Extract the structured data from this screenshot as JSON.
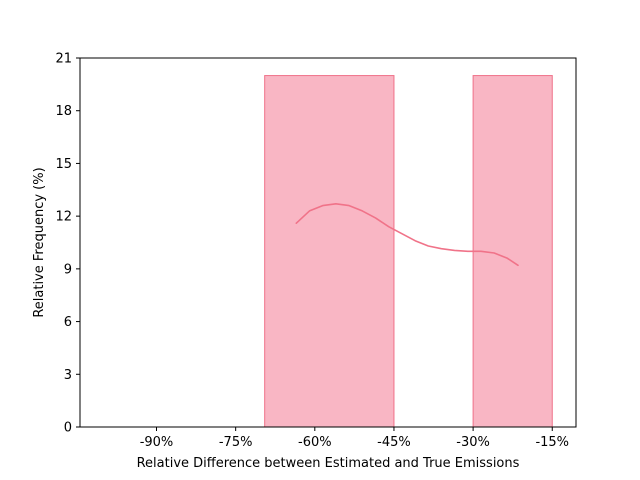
{
  "chart_data": {
    "type": "bar",
    "title": "",
    "xlabel": "Relative Difference between Estimated and True Emissions",
    "ylabel": "Relative Frequency (%)",
    "xlim": [
      -104.5,
      -10.5
    ],
    "ylim": [
      0,
      21
    ],
    "x_ticks": [
      {
        "value": -90,
        "label": "-90%"
      },
      {
        "value": -75,
        "label": "-75%"
      },
      {
        "value": -60,
        "label": "-60%"
      },
      {
        "value": -45,
        "label": "-45%"
      },
      {
        "value": -30,
        "label": "-30%"
      },
      {
        "value": -15,
        "label": "-15%"
      }
    ],
    "y_ticks": [
      {
        "value": 0,
        "label": "0"
      },
      {
        "value": 3,
        "label": "3"
      },
      {
        "value": 6,
        "label": "6"
      },
      {
        "value": 9,
        "label": "9"
      },
      {
        "value": 12,
        "label": "12"
      },
      {
        "value": 15,
        "label": "15"
      },
      {
        "value": 18,
        "label": "18"
      },
      {
        "value": 21,
        "label": "21"
      }
    ],
    "bins": [
      {
        "x0": -100,
        "x1": -69.5,
        "value": 0
      },
      {
        "x0": -69.5,
        "x1": -45,
        "value": 20
      },
      {
        "x0": -45,
        "x1": -30,
        "value": 0
      },
      {
        "x0": -30,
        "x1": -15,
        "value": 20
      }
    ],
    "kde": {
      "x": [
        -63.5,
        -61,
        -58.5,
        -56,
        -53.5,
        -51,
        -48.5,
        -46,
        -43.5,
        -41,
        -38.5,
        -36,
        -33.5,
        -31,
        -28.5,
        -26,
        -23.5,
        -21.5
      ],
      "y": [
        11.6,
        12.3,
        12.6,
        12.7,
        12.6,
        12.3,
        11.9,
        11.4,
        11.0,
        10.6,
        10.3,
        10.15,
        10.05,
        10.0,
        10.0,
        9.9,
        9.6,
        9.2
      ]
    },
    "colors": {
      "bar_fill": "#f9b6c4",
      "bar_edge": "#ef7088",
      "kde_line": "#f07389",
      "axis": "#000000"
    },
    "grid": false,
    "legend": "none"
  }
}
